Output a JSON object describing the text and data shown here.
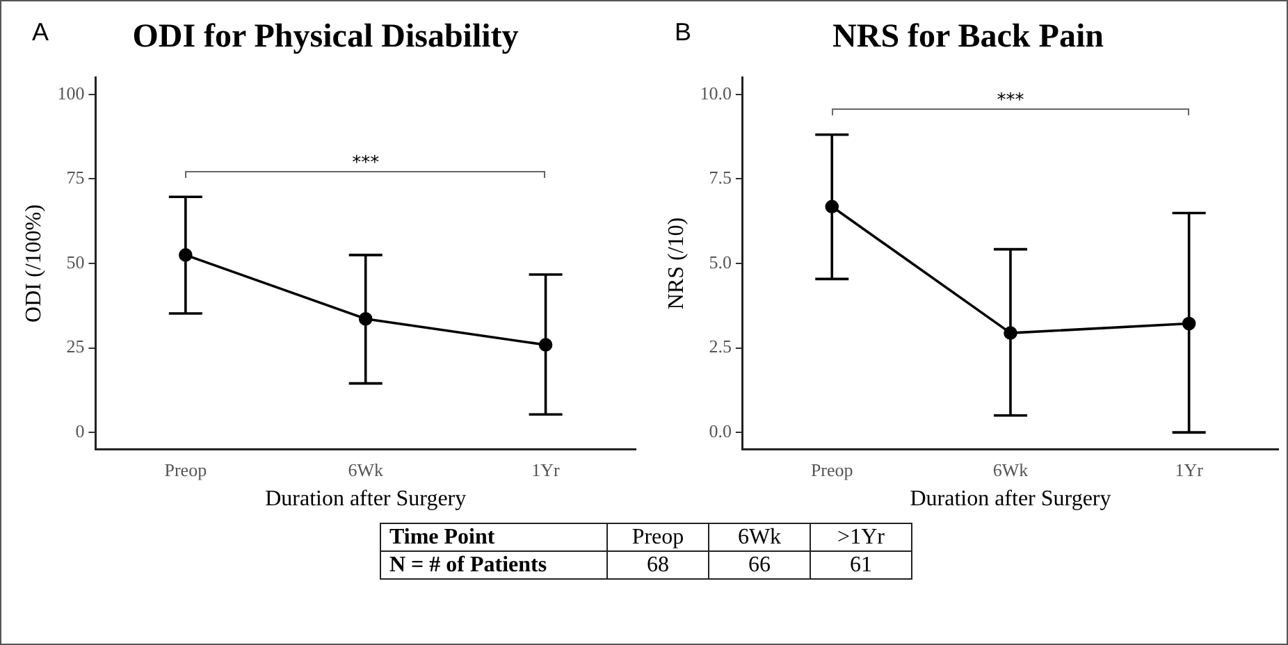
{
  "chart_data": [
    {
      "type": "line",
      "title": "ODI for Physical Disability",
      "xlabel": "Duration after Surgery",
      "ylabel": "ODI (/100%)",
      "categories": [
        "Preop",
        "6Wk",
        "1Yr"
      ],
      "series": [
        {
          "color": "#000000",
          "values": [
            52.5,
            33.6,
            25.9
          ],
          "errors": [
            [
              35.2,
              69.7
            ],
            [
              14.5,
              52.5
            ],
            [
              5.3,
              46.7
            ]
          ]
        }
      ],
      "ylim": [
        -5,
        105
      ],
      "yticks": [
        0,
        25,
        50,
        75,
        100
      ],
      "grid": false,
      "legend": false,
      "marker": "circle",
      "line_style": "solid",
      "annotations": [
        "A",
        "***"
      ]
    },
    {
      "type": "line",
      "title": "NRS for Back Pain",
      "xlabel": "Duration after Surgery",
      "ylabel": "NRS (/10)",
      "categories": [
        "Preop",
        "6Wk",
        "1Yr"
      ],
      "series": [
        {
          "color": "#000000",
          "values": [
            6.68,
            2.94,
            3.22
          ],
          "errors": [
            [
              4.54,
              8.81
            ],
            [
              0.5,
              5.42
            ],
            [
              0,
              6.49
            ]
          ]
        }
      ],
      "ylim": [
        -0.5,
        10.5
      ],
      "yticks": [
        {
          "value": 0,
          "label": "0.0"
        },
        {
          "value": 2.5,
          "label": "2.5"
        },
        {
          "value": 5,
          "label": "5.0"
        },
        {
          "value": 7.5,
          "label": "7.5"
        },
        {
          "value": 10,
          "label": "10.0"
        }
      ],
      "grid": false,
      "legend": false,
      "marker": "circle",
      "line_style": "solid",
      "annotations": [
        "B",
        "***"
      ]
    },
    {
      "type": "other",
      "annotations": [
        "Time Point",
        "Preop",
        "6Wk",
        ">1Yr",
        "N = # of Patients",
        "68",
        "66",
        "61"
      ]
    }
  ]
}
